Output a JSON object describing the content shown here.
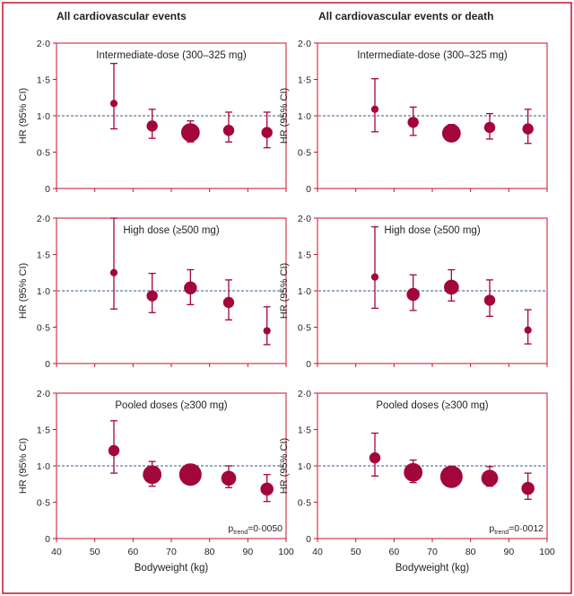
{
  "colors": {
    "frame": "#c8102e",
    "marker": "#a3063b",
    "reference_line": "#3a5a8a",
    "text": "#231f20",
    "background": "#ffffff"
  },
  "column_titles": [
    "All cardiovascular events",
    "All cardiovascular events or death"
  ],
  "ylabel": "HR (95% CI)",
  "xlabel": "Bodyweight (kg)",
  "x_ticks": [
    "40",
    "50",
    "60",
    "70",
    "80",
    "90",
    "100"
  ],
  "y_ticks": [
    "0",
    "0·5",
    "1·0",
    "1·5",
    "2·0"
  ],
  "chart_data": [
    {
      "type": "scatter",
      "row": 0,
      "col": 0,
      "title": "Intermediate-dose (300–325 mg)",
      "xlim": [
        40,
        100
      ],
      "ylim": [
        0,
        2
      ],
      "x": [
        55,
        65,
        75,
        85,
        95
      ],
      "y": [
        1.17,
        0.86,
        0.77,
        0.8,
        0.77
      ],
      "ci_low": [
        0.82,
        0.69,
        0.64,
        0.64,
        0.56
      ],
      "ci_high": [
        1.72,
        1.09,
        0.93,
        1.05,
        1.05
      ],
      "weight": [
        1,
        2,
        4,
        2,
        2
      ],
      "reference_line": 1.0,
      "p_trend": null
    },
    {
      "type": "scatter",
      "row": 0,
      "col": 1,
      "title": "Intermediate-dose (300–325 mg)",
      "xlim": [
        40,
        100
      ],
      "ylim": [
        0,
        2
      ],
      "x": [
        55,
        65,
        75,
        85,
        95
      ],
      "y": [
        1.09,
        0.91,
        0.76,
        0.84,
        0.82
      ],
      "ci_low": [
        0.78,
        0.73,
        0.66,
        0.68,
        0.62
      ],
      "ci_high": [
        1.51,
        1.12,
        0.88,
        1.03,
        1.09
      ],
      "weight": [
        1,
        2,
        4,
        2,
        2
      ],
      "reference_line": 1.0,
      "p_trend": null
    },
    {
      "type": "scatter",
      "row": 1,
      "col": 0,
      "title": "High dose (≥500 mg)",
      "xlim": [
        40,
        100
      ],
      "ylim": [
        0,
        2
      ],
      "x": [
        55,
        65,
        75,
        85,
        95
      ],
      "y": [
        1.25,
        0.93,
        1.04,
        0.84,
        0.45
      ],
      "ci_low": [
        0.75,
        0.7,
        0.81,
        0.6,
        0.26
      ],
      "ci_high": [
        2.0,
        1.24,
        1.29,
        1.15,
        0.78
      ],
      "weight": [
        1,
        2,
        2.5,
        2,
        1
      ],
      "reference_line": 1.0,
      "p_trend": null
    },
    {
      "type": "scatter",
      "row": 1,
      "col": 1,
      "title": "High dose (≥500 mg)",
      "xlim": [
        40,
        100
      ],
      "ylim": [
        0,
        2
      ],
      "x": [
        55,
        65,
        75,
        85,
        95
      ],
      "y": [
        1.19,
        0.95,
        1.05,
        0.87,
        0.46
      ],
      "ci_low": [
        0.76,
        0.73,
        0.86,
        0.65,
        0.27
      ],
      "ci_high": [
        1.88,
        1.22,
        1.29,
        1.15,
        0.74
      ],
      "weight": [
        1,
        2.5,
        3,
        2,
        1
      ],
      "reference_line": 1.0,
      "p_trend": null
    },
    {
      "type": "scatter",
      "row": 2,
      "col": 0,
      "title": "Pooled doses (≥300 mg)",
      "xlim": [
        40,
        100
      ],
      "ylim": [
        0,
        2
      ],
      "x": [
        55,
        65,
        75,
        85,
        95
      ],
      "y": [
        1.21,
        0.88,
        0.88,
        0.83,
        0.68
      ],
      "ci_low": [
        0.9,
        0.72,
        0.76,
        0.7,
        0.51
      ],
      "ci_high": [
        1.62,
        1.06,
        1.02,
        1.0,
        0.88
      ],
      "weight": [
        2,
        4,
        5,
        3,
        2.5
      ],
      "reference_line": 1.0,
      "p_trend": "0·0050"
    },
    {
      "type": "scatter",
      "row": 2,
      "col": 1,
      "title": "Pooled doses (≥300 mg)",
      "xlim": [
        40,
        100
      ],
      "ylim": [
        0,
        2
      ],
      "x": [
        55,
        65,
        75,
        85,
        95
      ],
      "y": [
        1.11,
        0.91,
        0.85,
        0.83,
        0.69
      ],
      "ci_low": [
        0.86,
        0.77,
        0.76,
        0.72,
        0.54
      ],
      "ci_high": [
        1.45,
        1.08,
        0.95,
        0.99,
        0.9
      ],
      "weight": [
        2,
        4,
        5,
        3.5,
        2.5
      ],
      "reference_line": 1.0,
      "p_trend": "0·0012"
    }
  ]
}
